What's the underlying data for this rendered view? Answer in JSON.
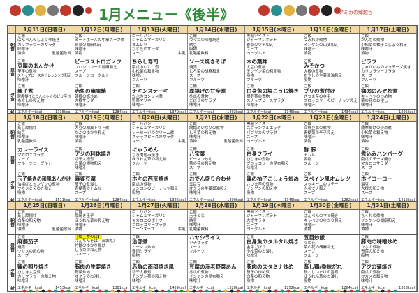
{
  "header": {
    "title": "1月メニュー《後半》",
    "brand": "アミカの郷越谷"
  },
  "colors": {
    "title": "#2f8a3a",
    "header_bg": "#f2d8a3",
    "highlight": "#ffef00",
    "brand": "#c0392b"
  },
  "labels": {
    "breakfast": "朝食",
    "lunch": "昼食",
    "dinner": "夕食",
    "total": "計",
    "energy": "エネルギーkcal"
  },
  "weeks": [
    {
      "days": [
        {
          "date": "1月11日(日曜日)",
          "kcal": "1338kcal",
          "breakfast": {
            "items": [
              "ご飯",
              "はんぺんのしょうゆ焼き",
              "カリフラワーのサラダ",
              "味噌汁",
              "漬物"
            ],
            "side": "乳酸菌飲料"
          },
          "lunch": {
            "main": 1,
            "items": [
              "ご飯",
              "豆腐のあんかけ",
              "里芋の煮物",
              "スナップピースのドレッシング和え",
              "味噌汁"
            ]
          },
          "dinner": {
            "main": 1,
            "items": [
              "ご飯",
              "親子煮",
              "薩摩揚げとこんにゃくのピリ辛炒",
              "もやしの和え物",
              "味噌汁"
            ]
          }
        },
        {
          "date": "1月12日(月曜日)",
          "kcal": "1284kcal",
          "breakfast": {
            "items": [
              "ご飯",
              "ミートボールの中華スープ煮",
              "白菜の胡麻和え",
              "味噌汁",
              "漬物"
            ]
          },
          "lunch": {
            "main": 0,
            "items": [
              "ビーフストロガノフ",
              "ブロッコリーの胡麻和え",
              "スープ",
              "フルーツヨーグルト"
            ]
          },
          "dinner": {
            "main": 1,
            "items": [
              "ご飯",
              "赤魚の幽庵焼",
              "蓮根の塩炒め",
              "大根サラダ",
              "味噌汁"
            ]
          }
        },
        {
          "date": "1月13日(火曜日)",
          "kcal": "1370kcal",
          "breakfast": {
            "items": [
              "ロールパン",
              "ジャム＆マーガリン",
              "オムレツ",
              "ひじきのサラダ",
              "スープ"
            ],
            "side": "牛乳"
          },
          "lunch": {
            "main": 0,
            "items": [
              "ちらし寿司",
              "南瓜のいとこ煮",
              "小松菜の和え物",
              "味噌汁",
              "フルーツ"
            ]
          },
          "dinner": {
            "main": 1,
            "items": [
              "ご飯",
              "チキンステーキ",
              "かぶのコンソメ煮",
              "野菜マリネ",
              "味噌汁"
            ]
          }
        },
        {
          "date": "1月14日(水曜日)",
          "kcal": "1402kcal",
          "breakfast": {
            "items": [
              "ご飯",
              "つくねの味噌焼き",
              "納豆",
              "吸物",
              "乳酸菌飲料"
            ]
          },
          "lunch": {
            "main": 0,
            "items": [
              "ソース焼きそば",
              "焼売",
              "しろ菜の胡麻和え",
              "スープ",
              "フルーツ"
            ]
          },
          "dinner": {
            "main": 1,
            "items": [
              "ご飯",
              "厚揚げの甘辛煮",
              "冬瓜の煮物",
              "ごぼうのサラダ",
              "味噌汁"
            ]
          }
        },
        {
          "date": "1月15日(木曜日)",
          "kcal": "1145kcal",
          "breakfast": {
            "items": [
              "黒糖ツイスト",
              "ジャーマンポテト",
              "春菊のツナ和え",
              "スープ",
              "ヨーグルト"
            ]
          },
          "lunch": {
            "main": 0,
            "items": [
              "木の葉丼",
              "大豆の煮物",
              "チンゲン菜の和え物",
              "吸物",
              "フルーツ"
            ]
          },
          "dinner": {
            "main": 1,
            "items": [
              "ご飯",
              "白身魚の塩こうじ焼き",
              "根野菜の煮物",
              "スナップピースサラダ",
              "味噌汁"
            ]
          }
        },
        {
          "date": "1月16日(金曜日)",
          "kcal": "1434kcal",
          "breakfast": {
            "items": [
              "ご飯",
              "つみれの煮物",
              "インゲンの山葵和え",
              "味噌汁",
              "漬物"
            ]
          },
          "lunch": {
            "main": 1,
            "items": [
              "ご飯",
              "みそかつ",
              "大根の煮物",
              "もやしの生姜醤油和え",
              "吸物"
            ]
          },
          "dinner": {
            "main": 1,
            "items": [
              "ご飯",
              "ブリの煮付け",
              "さつま芋の金平",
              "ブロッコリーのピーナッツ和え",
              "味噌汁"
            ]
          }
        },
        {
          "date": "1月17日(土曜日)",
          "kcal": "1295kcal",
          "breakfast": {
            "items": [
              "ご飯",
              "がんもの煮物",
              "小松菜の柚子こしょう和え",
              "味噌汁",
              "漬物"
            ]
          },
          "lunch": {
            "main": 0,
            "items": [
              "ピラフ",
              "じゃがいものマヨチーズ焼き",
              "カリフラワーサラダ",
              "スープ",
              "フルーツ"
            ]
          },
          "dinner": {
            "main": 1,
            "items": [
              "ご飯",
              "鶏肉のみぞれ煮",
              "キャベツの炒め物",
              "菜の花のお浸し",
              "味噌汁"
            ]
          }
        }
      ]
    },
    {
      "days": [
        {
          "date": "1月18日(日曜日)",
          "kcal": "1511kcal",
          "breakfast": {
            "items": [
              "ご飯",
              "蒸し厚揚げ",
              "納豆",
              "味噌汁",
              "乳酸菌飲料"
            ]
          },
          "lunch": {
            "main": 0,
            "items": [
              "カレーライス",
              "マカロニサラダ",
              "スープ",
              "フルーツヨーグルト"
            ]
          },
          "dinner": {
            "main": 1,
            "items": [
              "ご飯",
              "玉子焼きの和風あんかけ",
              "油揚げとインゲンの煮物",
              "ワカメとえのき和え",
              "吸物"
            ]
          }
        },
        {
          "date": "1月19日(月曜日)",
          "kcal": "1284kcal",
          "breakfast": {
            "items": [
              "ご飯",
              "大豆の和風トマト煮",
              "かぶのゆかり和え",
              "味噌汁",
              "漬物"
            ]
          },
          "lunch": {
            "main": 1,
            "items": [
              "ご飯",
              "アジの利休焼き",
              "切干大根煮",
              "白菜の漬物和え",
              "味噌汁"
            ]
          },
          "dinner": {
            "main": 1,
            "items": [
              "ご飯",
              "麻婆豆腐",
              "茄子の煮浸し",
              "青梗菜のナムル",
              "スープ"
            ]
          }
        },
        {
          "date": "1月20日(火曜日)",
          "kcal": "1326kcal",
          "breakfast": {
            "items": [
              "ロールパン",
              "ジャム＆マーガリン",
              "ソーセージのクリーム煮",
              "スナップピースのサラダ",
              "スープ"
            ],
            "side": "牛乳"
          },
          "lunch": {
            "main": 0,
            "items": [
              "にゅうめん",
              "ひき肉包み焼き",
              "ほうれん草の和え物",
              "フルーツ"
            ]
          },
          "dinner": {
            "main": 1,
            "items": [
              "ご飯",
              "ホキの西京焼き",
              "南瓜の煮物",
              "レンコンのピーナッツ和え",
              "吸物"
            ]
          }
        },
        {
          "date": "1月21日(水曜日)",
          "kcal": "1400kcal",
          "breakfast": {
            "items": [
              "ご飯",
              "肉詰めいなりの煮物",
              "しろ菜の和え物",
              "味噌汁",
              "漬物"
            ],
            "side": "乳酸菌飲料"
          },
          "lunch": {
            "main": 1,
            "items": [
              "ご飯",
              "八宝菜",
              "ピーマン炒め",
              "菜の花の和え物",
              "スープ"
            ]
          },
          "dinner": {
            "main": 1,
            "items": [
              "ご飯",
              "おでん盛り合わせ",
              "五目豆",
              "オクラの生姜醤油和え",
              "味噌汁"
            ]
          }
        },
        {
          "date": "1月22日(木曜日)",
          "kcal": "1345kcal",
          "breakfast": {
            "items": [
              "黒糖ツイスト",
              "スクランブルエッグ",
              "パプリカのサラダ",
              "スープ",
              "ヨーグルト"
            ]
          },
          "lunch": {
            "main": 1,
            "items": [
              "ご飯",
              "白身フライ",
              "ひじきの煮物",
              "ブロッコリーの昆布和え",
              "味噌汁"
            ]
          },
          "dinner": {
            "main": 1,
            "items": [
              "ご飯",
              "鶏の柚子こしょう炒め",
              "さつま芋の煮物",
              "インゲンの和え物",
              "吸物"
            ]
          }
        },
        {
          "date": "1月23日(金曜日)",
          "kcal": "1282kcal",
          "breakfast": {
            "items": [
              "ご飯",
              "高野豆腐の煮物",
              "青梗菜の辛子和え",
              "味噌汁",
              "漬物"
            ]
          },
          "lunch": {
            "main": 0,
            "items": [
              "酢 豚",
              "ナムル",
              "吸物",
              "フルーツ"
            ]
          },
          "dinner": {
            "main": 1,
            "items": [
              "ご飯",
              "スペイン風オムレツ",
              "ズッキーニのソテー",
              "人参ツナ和え",
              "スープ"
            ]
          }
        },
        {
          "date": "1月24日(土曜日)",
          "kcal": "1412kcal",
          "breakfast": {
            "items": [
              "ご飯",
              "薩摩揚げの炒め煮",
              "小松菜の和え物",
              "味噌汁",
              "漬物"
            ]
          },
          "lunch": {
            "main": 1,
            "items": [
              "ご飯",
              "煮込みハンバーグ",
              "南瓜のチーズ焼き",
              "マカロニサラダ",
              "スープ"
            ]
          },
          "dinner": {
            "main": 1,
            "items": [
              "ご飯",
              "ホイコーロー",
              "湯豆",
              "大根の和え物",
              "スープ"
            ]
          }
        }
      ]
    },
    {
      "days": [
        {
          "date": "1月25日(日曜日)",
          "kcal": "1453kcal",
          "breakfast": {
            "items": [
              "ご飯",
              "蒸し厚揚げ",
              "白菜の和え物",
              "味噌汁",
              "漬物"
            ],
            "side": "乳酸菌飲料"
          },
          "lunch": {
            "main": 1,
            "items": [
              "ご飯",
              "麻婆茄子",
              "焼売",
              "ワカメの酢の物",
              "スープ"
            ]
          },
          "dinner": {
            "main": 1,
            "items": [
              "ご飯",
              "鶏の照り焼き",
              "ひじき大豆煮",
              "カリフラワーの和え物",
              "味噌汁"
            ]
          }
        },
        {
          "date": "1月26日(月曜日)",
          "kcal": "1381kcal",
          "breakfast": {
            "items": [
              "ご飯",
              "厚焼き玉子",
              "ほうれん草の和え物",
              "味噌汁",
              "漬物"
            ]
          },
          "lunch": {
            "highlight": 0,
            "items": [
              "【郷土食の日】",
              "けんちんそば（茨城県）",
              "竹輪のゆかり揚げ",
              "しろ菜の和え物",
              "フルーツ"
            ]
          },
          "dinner": {
            "main": 1,
            "items": [
              "ご飯",
              "豚肉の生姜焼き",
              "野菜炒め",
              "オクラのお浸し",
              "味噌汁"
            ]
          }
        },
        {
          "date": "1月27日(火曜日)",
          "kcal": "1459kcal",
          "breakfast": {
            "items": [
              "ロールパン",
              "ジャム＆マーガリン",
              "マカロニのポトフ",
              "ブロッコリーサラダ",
              "コーンスープ"
            ],
            "side": "牛乳"
          },
          "lunch": {
            "main": 1,
            "items": [
              "ご飯",
              "治部煮",
              "ピーマン炒め",
              "春雨サラダ",
              "吸物"
            ]
          },
          "dinner": {
            "main": 1,
            "items": [
              "ご飯",
              "赤魚の南部焼き風",
              "切干大根煮",
              "チンゲン菜の和え物",
              "味噌汁"
            ]
          }
        },
        {
          "date": "1月28日(水曜日)",
          "kcal": "1328kcal",
          "breakfast": {
            "items": [
              "ご飯",
              "玉子とじ",
              "納豆",
              "味噌汁",
              "乳酸菌飲料"
            ]
          },
          "lunch": {
            "main": 0,
            "items": [
              "ハヤシライス",
              "ツナサラダ",
              "スープ",
              "フルーツ"
            ]
          },
          "dinner": {
            "main": 1,
            "items": [
              "ご飯",
              "豆腐の海老野菜あん",
              "冬瓜の煮物",
              "インゲンの昆布和え",
              "味噌汁"
            ]
          }
        },
        {
          "date": "1月29日(木曜日)",
          "kcal": "1252kcal",
          "breakfast": {
            "items": [
              "黒糖ツイスト",
              "ジャーマンポテト",
              "大根サラダ",
              "スープ",
              "ヨーグルト"
            ]
          },
          "lunch": {
            "main": 1,
            "items": [
              "ご飯",
              "白身魚のタルタル焼き",
              "金平ごぼう",
              "小松菜のお浸し",
              "味噌汁"
            ]
          },
          "dinner": {
            "main": 1,
            "items": [
              "ご飯",
              "豚肉のスタミナ炒め",
              "茄子の炒め煮",
              "白菜の和え物",
              "吸物"
            ]
          }
        },
        {
          "date": "1月30日(金曜日)",
          "kcal": "1284kcal",
          "breakfast": {
            "items": [
              "ご飯",
              "はんぺんのマヨ焼き",
              "キャベツのゆかり和え",
              "味噌汁",
              "漬物"
            ]
          },
          "lunch": {
            "main": 0,
            "items": [
              "五目炒飯",
              "うの花",
              "菜の花の胡麻和え",
              "スープ",
              "フルーツ"
            ]
          },
          "dinner": {
            "main": 1,
            "items": [
              "ご飯",
              "蒸し鶏/香味だれ",
              "麩としいたけの旨煮",
              "ほうれん草のお浸し",
              "吸物"
            ]
          }
        },
        {
          "date": "1月31日(土曜日)",
          "kcal": "1323kcal",
          "breakfast": {
            "items": [
              "ご飯",
              "ちくわの煮物",
              "インゲンの胡麻和え",
              "味噌汁",
              "漬物"
            ]
          },
          "lunch": {
            "main": 1,
            "items": [
              "ご飯",
              "豚肉の味噌炒め",
              "かぶの煮物",
              "青菜の和え物",
              "吸物"
            ]
          },
          "dinner": {
            "main": 1,
            "items": [
              "ご飯",
              "アジの蒲焼き",
              "南瓜の煮物",
              "ワカメの和え物",
              "味噌汁"
            ]
          }
        }
      ]
    }
  ]
}
